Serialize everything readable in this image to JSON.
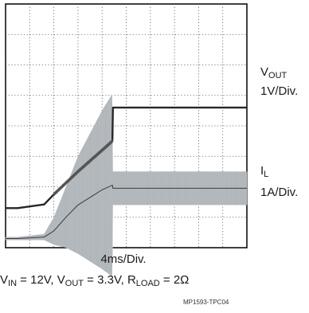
{
  "chart_data": {
    "type": "line",
    "title": "",
    "x_scale": "4ms/Div.",
    "conditions": {
      "vin_label": "V",
      "vin_sub": "IN",
      "vin_value": " = 12V, ",
      "vout_label": "V",
      "vout_sub": "OUT",
      "vout_value": " = 3.3V, ",
      "rload_label": "R",
      "rload_sub": "LOAD",
      "rload_value": " = 2Ω"
    },
    "figure_id": "MP1593-TPC04",
    "grid": {
      "on": true,
      "divisions_x": 10,
      "divisions_y": 8,
      "style": "dotted"
    },
    "x_unit": "ms",
    "xlim": [
      0,
      40
    ],
    "series": [
      {
        "name": "V",
        "name_sub": "OUT",
        "scale": "1V/Div.",
        "color": "#262626",
        "ylim_div": [
          -1.3,
          6.7
        ],
        "x": [
          0,
          2,
          6.4,
          8,
          12,
          16,
          17.7,
          17.8,
          40
        ],
        "y": [
          0,
          0,
          0.12,
          0.45,
          1.2,
          1.9,
          2.2,
          3.3,
          3.3
        ]
      },
      {
        "name": "I",
        "name_sub": "L",
        "scale": "1A/Div.",
        "color": "#9aa0a6",
        "ylim_div": [
          -0.3,
          7.7
        ],
        "x": [
          0,
          2,
          6.4,
          8,
          10,
          12,
          14,
          16,
          17.7,
          17.8,
          40
        ],
        "y_center": [
          0,
          0,
          0.05,
          0.25,
          0.7,
          1.1,
          1.35,
          1.6,
          1.75,
          1.65,
          1.65
        ],
        "y_ripple": [
          0.05,
          0.05,
          0.1,
          0.45,
          1.0,
          1.6,
          2.1,
          2.6,
          3.0,
          0.55,
          0.55
        ]
      }
    ]
  }
}
